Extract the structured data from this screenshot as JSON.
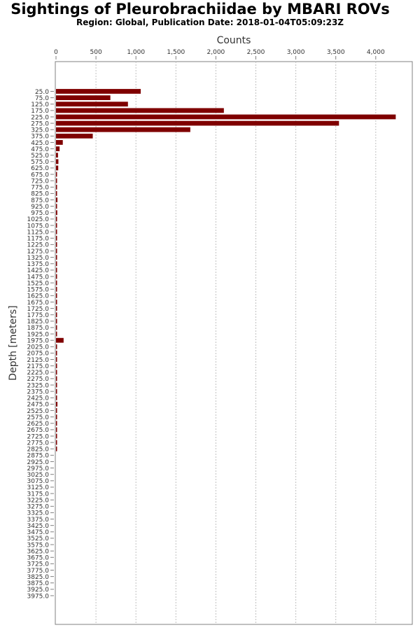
{
  "chart_data": {
    "type": "bar",
    "orientation": "horizontal",
    "title": "Sightings of Pleurobrachiidae by MBARI ROVs",
    "subtitle": "Region: Global, Publication Date: 2018-01-04T05:09:23Z",
    "xlabel": "Counts",
    "ylabel": "Depth [meters]",
    "xlim": [
      0,
      4500
    ],
    "x_ticks": [
      0,
      500,
      1000,
      1500,
      2000,
      2500,
      3000,
      3500,
      4000
    ],
    "x_tick_labels": [
      "0",
      "500",
      "1,000",
      "1,500",
      "2,000",
      "2,500",
      "3,000",
      "3,500",
      "4,000"
    ],
    "grid": "vertical dashed",
    "legend": "none",
    "bar_color": "#7f0000",
    "categories": [
      "25.0",
      "75.0",
      "125.0",
      "175.0",
      "225.0",
      "275.0",
      "325.0",
      "375.0",
      "425.0",
      "475.0",
      "525.0",
      "575.0",
      "625.0",
      "675.0",
      "725.0",
      "775.0",
      "825.0",
      "875.0",
      "925.0",
      "975.0",
      "1025.0",
      "1075.0",
      "1125.0",
      "1175.0",
      "1225.0",
      "1275.0",
      "1325.0",
      "1375.0",
      "1425.0",
      "1475.0",
      "1525.0",
      "1575.0",
      "1625.0",
      "1675.0",
      "1725.0",
      "1775.0",
      "1825.0",
      "1875.0",
      "1925.0",
      "1975.0",
      "2025.0",
      "2075.0",
      "2125.0",
      "2175.0",
      "2225.0",
      "2275.0",
      "2325.0",
      "2375.0",
      "2425.0",
      "2475.0",
      "2525.0",
      "2575.0",
      "2625.0",
      "2675.0",
      "2725.0",
      "2775.0",
      "2825.0",
      "2875.0",
      "2925.0",
      "2975.0",
      "3025.0",
      "3075.0",
      "3125.0",
      "3175.0",
      "3225.0",
      "3275.0",
      "3325.0",
      "3375.0",
      "3425.0",
      "3475.0",
      "3525.0",
      "3575.0",
      "3625.0",
      "3675.0",
      "3725.0",
      "3775.0",
      "3825.0",
      "3875.0",
      "3925.0",
      "3975.0"
    ],
    "values": [
      1060,
      680,
      900,
      2100,
      4250,
      3540,
      1680,
      460,
      85,
      45,
      25,
      30,
      28,
      10,
      5,
      4,
      3,
      18,
      6,
      16,
      4,
      3,
      3,
      2,
      10,
      3,
      2,
      2,
      1,
      1,
      1,
      1,
      1,
      1,
      1,
      1,
      1,
      1,
      2,
      95,
      1,
      1,
      1,
      1,
      1,
      1,
      6,
      1,
      1,
      18,
      1,
      1,
      1,
      1,
      1,
      1,
      1,
      0,
      0,
      0,
      0,
      0,
      0,
      0,
      0,
      0,
      0,
      0,
      0,
      0,
      0,
      0,
      0,
      0,
      0,
      0,
      0,
      0,
      0,
      0
    ]
  }
}
